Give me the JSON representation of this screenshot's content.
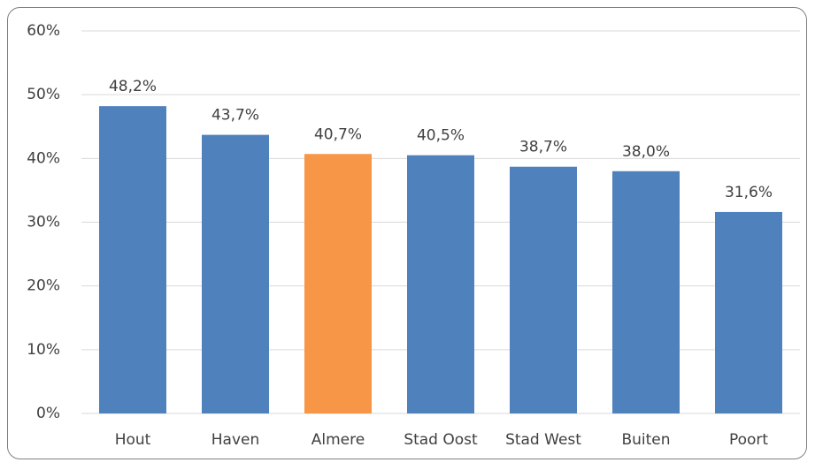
{
  "chart_data": {
    "type": "bar",
    "categories": [
      "Hout",
      "Haven",
      "Almere",
      "Stad Oost",
      "Stad West",
      "Buiten",
      "Poort"
    ],
    "values": [
      48.2,
      43.7,
      40.7,
      40.5,
      38.7,
      38.0,
      31.6
    ],
    "value_labels": [
      "48,2%",
      "43,7%",
      "40,7%",
      "40,5%",
      "38,7%",
      "38,0%",
      "31,6%"
    ],
    "colors": [
      "#4f81bd",
      "#4f81bd",
      "#f79646",
      "#4f81bd",
      "#4f81bd",
      "#4f81bd",
      "#4f81bd"
    ],
    "ylim": [
      0,
      60
    ],
    "yticks": [
      {
        "value": 0,
        "label": "0%"
      },
      {
        "value": 10,
        "label": "10%"
      },
      {
        "value": 20,
        "label": "20%"
      },
      {
        "value": 30,
        "label": "30%"
      },
      {
        "value": 40,
        "label": "40%"
      },
      {
        "value": 50,
        "label": "50%"
      },
      {
        "value": 60,
        "label": "60%"
      }
    ],
    "grid": true
  }
}
